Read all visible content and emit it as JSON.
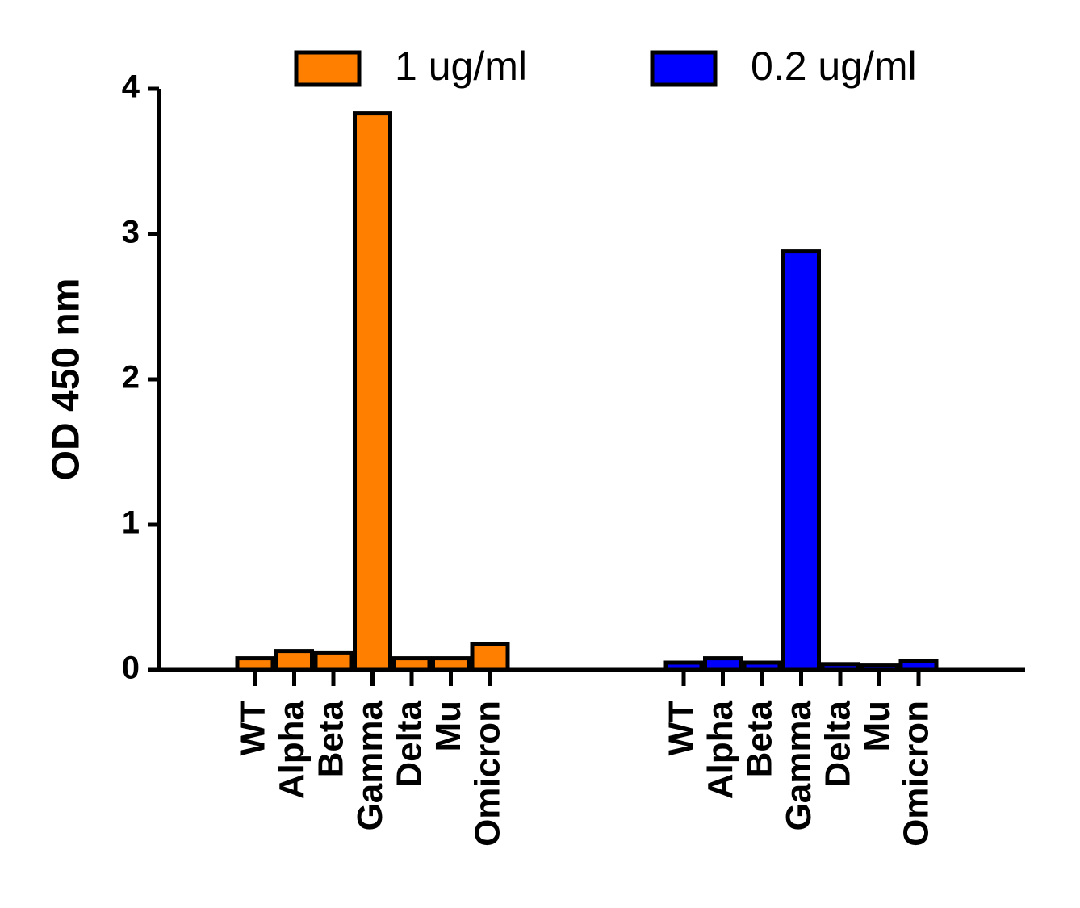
{
  "chart_data": {
    "type": "bar",
    "y_label": "OD 450 nm",
    "categories": [
      "WT",
      "Alpha",
      "Beta",
      "Gamma",
      "Delta",
      "Mu",
      "Omicron"
    ],
    "series": [
      {
        "name": "1 ug/ml",
        "color": "#ff8000",
        "values": [
          0.08,
          0.13,
          0.12,
          3.83,
          0.08,
          0.08,
          0.18
        ]
      },
      {
        "name": "0.2 ug/ml",
        "color": "#0000ff",
        "values": [
          0.05,
          0.08,
          0.05,
          2.88,
          0.04,
          0.03,
          0.06
        ]
      }
    ],
    "ylim": [
      0,
      4
    ],
    "yticks": [
      0,
      1,
      2,
      3,
      4
    ],
    "grid": false,
    "legend": "top"
  }
}
